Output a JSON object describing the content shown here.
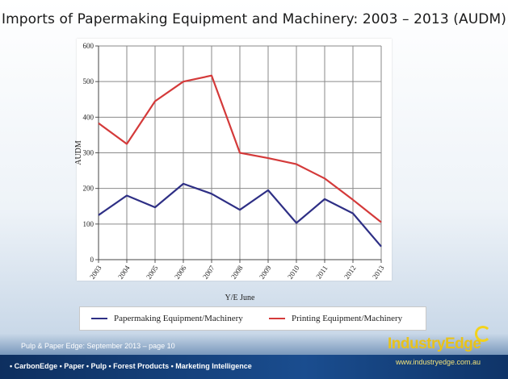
{
  "chart_data": {
    "type": "line",
    "title": "Imports of Papermaking Equipment and Machinery:  2003 – 2013 (AUDM)",
    "xlabel": "Y/E June",
    "ylabel": "AUDM",
    "categories": [
      "2003",
      "2004",
      "2005",
      "2006",
      "2007",
      "2008",
      "2009",
      "2010",
      "2011",
      "2012",
      "2013"
    ],
    "ylim": [
      0,
      600
    ],
    "yticks": [
      0,
      100,
      200,
      300,
      400,
      500,
      600
    ],
    "grid": true,
    "legend_position": "bottom",
    "series": [
      {
        "name": "Papermaking Equipment/Machinery",
        "color": "#2e2f85",
        "values": [
          125,
          180,
          147,
          213,
          185,
          140,
          195,
          103,
          170,
          130,
          37
        ]
      },
      {
        "name": "Printing Equipment/Machinery",
        "color": "#d43a3a",
        "values": [
          383,
          325,
          445,
          500,
          517,
          300,
          285,
          268,
          228,
          168,
          105
        ]
      }
    ]
  },
  "footer": {
    "note": "Pulp & Paper Edge: September 2013 – page 10",
    "tagline": "• CarbonEdge • Paper • Pulp • Forest Products • Marketing Intelligence"
  },
  "logo": {
    "text": "IndustryEdge",
    "url": "www.industryedge.com.au"
  }
}
